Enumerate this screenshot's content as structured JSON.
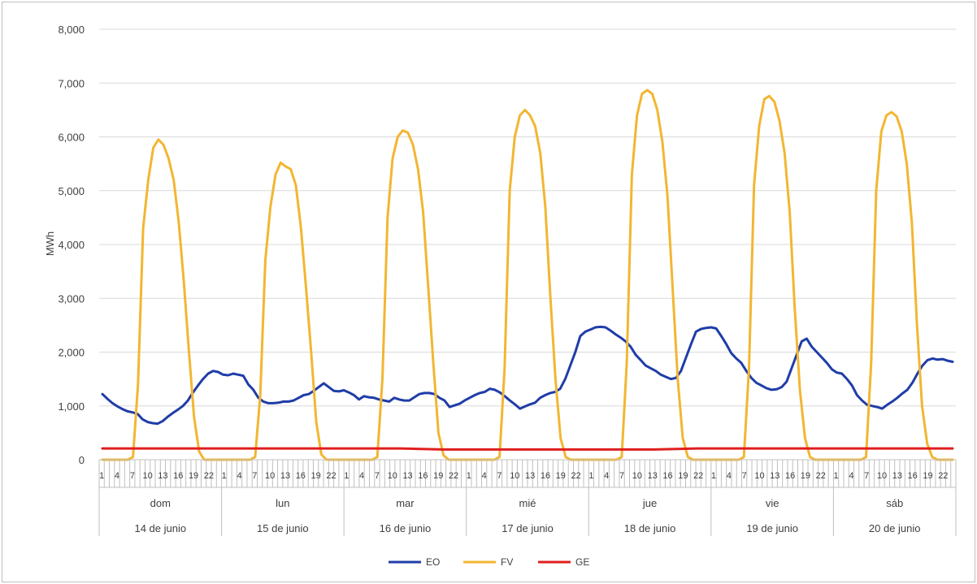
{
  "chart_data": {
    "type": "line",
    "title": "",
    "ylabel": "MWh",
    "ylim": [
      0,
      8000
    ],
    "yticks": [
      0,
      1000,
      2000,
      3000,
      4000,
      5000,
      6000,
      7000,
      8000
    ],
    "ytick_labels": [
      "0",
      "1,000",
      "2,000",
      "3,000",
      "4,000",
      "5,000",
      "6,000",
      "7,000",
      "8,000"
    ],
    "grid": true,
    "legend_position": "bottom",
    "hour_tick_labels": [
      "1",
      "4",
      "7",
      "10",
      "13",
      "16",
      "19",
      "22"
    ],
    "days": [
      {
        "name": "dom",
        "date": "14 de junio"
      },
      {
        "name": "lun",
        "date": "15 de junio"
      },
      {
        "name": "mar",
        "date": "16 de junio"
      },
      {
        "name": "mié",
        "date": "17 de junio"
      },
      {
        "name": "jue",
        "date": "18 de junio"
      },
      {
        "name": "vie",
        "date": "19 de junio"
      },
      {
        "name": "sáb",
        "date": "20 de junio"
      }
    ],
    "series": [
      {
        "name": "EO",
        "color": "#1F3DA8",
        "values": [
          [
            1220,
            1130,
            1050,
            990,
            940,
            900,
            880,
            850,
            750,
            700,
            680,
            670,
            720,
            800,
            870,
            930,
            1000,
            1100,
            1250,
            1380,
            1500,
            1600,
            1650,
            1630,
            1580,
            1570,
            1600,
            1580,
            1560,
            1400,
            1300,
            1150,
            1080,
            1050,
            1050,
            1060,
            1080,
            1080,
            1100,
            1150,
            1200,
            1220,
            1280,
            1350,
            1420,
            1350,
            1280,
            1270
          ],
          [
            1290,
            1250,
            1200,
            1120,
            1180,
            1160,
            1150,
            1120,
            1100,
            1080,
            1150,
            1120,
            1100,
            1100,
            1160,
            1220,
            1240,
            1240,
            1220,
            1150,
            1100,
            980,
            1010,
            1040,
            1100,
            1150,
            1200,
            1240,
            1260,
            1320,
            1300,
            1250,
            1180,
            1100,
            1030,
            950,
            990,
            1030,
            1060,
            1150,
            1200,
            1240,
            1260,
            1320,
            1500,
            1750,
            2000,
            2300
          ],
          [
            2380,
            2420,
            2460,
            2470,
            2460,
            2400,
            2330,
            2270,
            2200,
            2100,
            1950,
            1850,
            1750,
            1700,
            1650,
            1580,
            1540,
            1500,
            1520,
            1650,
            1900,
            2150,
            2380,
            2430
          ],
          [
            2450,
            2460,
            2440,
            2300,
            2150,
            1980,
            1880,
            1800,
            1650,
            1520,
            1430,
            1380,
            1330,
            1300,
            1310,
            1350,
            1450,
            1700,
            1950,
            2200,
            2250,
            2100,
            2000,
            1900,
            1800,
            1680,
            1620,
            1600,
            1500,
            1380,
            1200,
            1100,
            1020,
            1000,
            980,
            950,
            1020,
            1080,
            1150,
            1230,
            1300,
            1430,
            1600,
            1750,
            1850,
            1880,
            1860,
            1870,
            1840,
            1820
          ]
        ]
      },
      {
        "name": "FV",
        "color": "#F2B632",
        "values": [
          [
            0,
            0,
            0,
            0,
            0,
            0,
            50,
            1400,
            4300,
            5200,
            5800,
            5950,
            5850,
            5600,
            5200,
            4400,
            3300,
            2000,
            800,
            150,
            0,
            0,
            0,
            0
          ],
          [
            0,
            0,
            0,
            0,
            0,
            0,
            50,
            1200,
            3700,
            4700,
            5300,
            5520,
            5450,
            5400,
            5100,
            4300,
            3200,
            2000,
            700,
            100,
            0,
            0,
            0,
            0
          ],
          [
            0,
            0,
            0,
            0,
            0,
            0,
            50,
            1500,
            4500,
            5600,
            6000,
            6120,
            6080,
            5850,
            5400,
            4600,
            3200,
            1800,
            500,
            80,
            0,
            0,
            0,
            0
          ],
          [
            0,
            0,
            0,
            0,
            0,
            0,
            50,
            1700,
            5000,
            6000,
            6400,
            6500,
            6400,
            6200,
            5700,
            4700,
            3000,
            1500,
            400,
            50,
            0,
            0,
            0,
            0
          ],
          [
            0,
            0,
            0,
            0,
            0,
            0,
            50,
            1800,
            5300,
            6400,
            6800,
            6870,
            6800,
            6500,
            5900,
            4900,
            3200,
            1500,
            400,
            50,
            0,
            0,
            0,
            0
          ],
          [
            0,
            0,
            0,
            0,
            0,
            0,
            50,
            1700,
            5100,
            6200,
            6700,
            6760,
            6650,
            6300,
            5700,
            4600,
            2800,
            1300,
            400,
            50,
            0,
            0,
            0,
            0
          ],
          [
            0,
            0,
            0,
            0,
            0,
            0,
            50,
            1800,
            5000,
            6100,
            6400,
            6460,
            6380,
            6100,
            5500,
            4400,
            2500,
            1000,
            300,
            50,
            0,
            0,
            0,
            0
          ]
        ]
      },
      {
        "name": "GE",
        "color": "#E01E1E",
        "values": [
          210,
          210,
          210,
          210,
          210,
          210,
          210,
          210,
          190,
          190,
          190,
          190,
          190,
          190,
          210,
          210,
          210,
          210,
          210,
          210,
          210
        ]
      }
    ]
  }
}
